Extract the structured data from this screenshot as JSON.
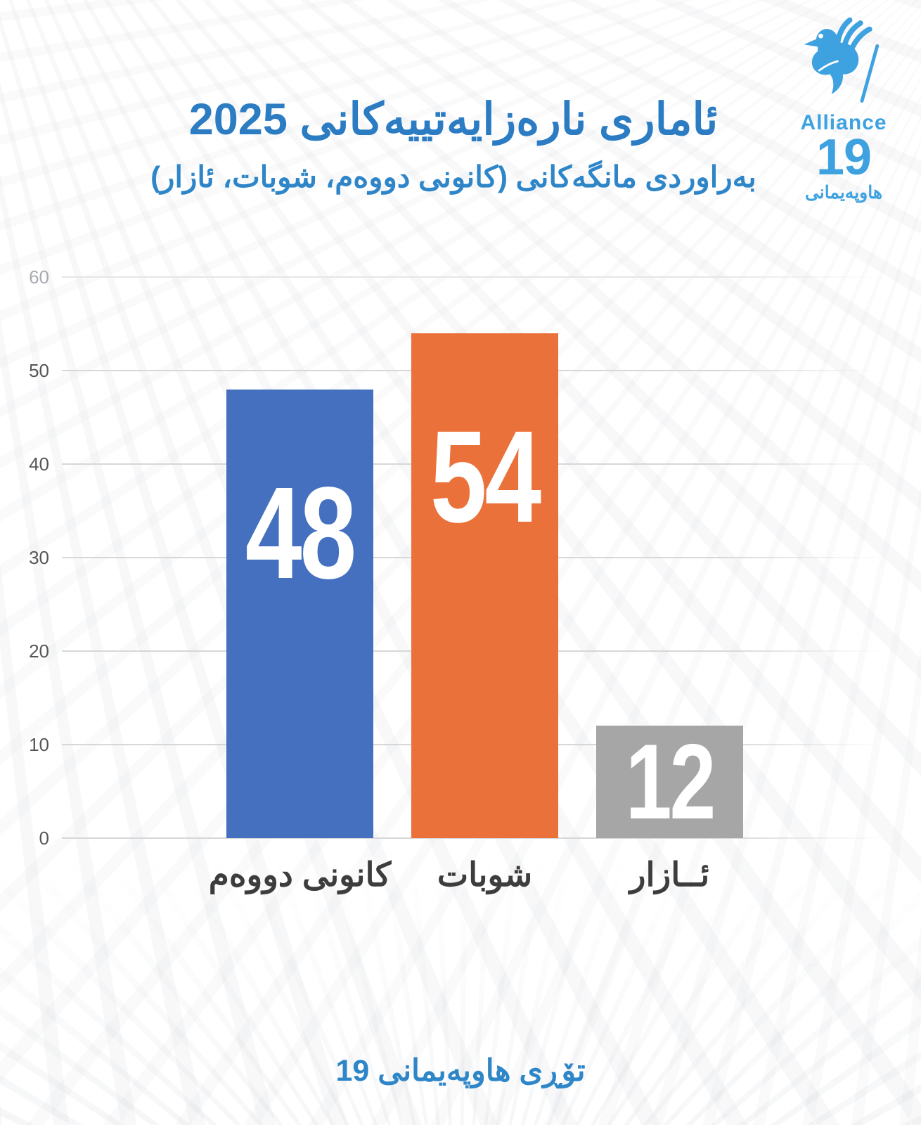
{
  "page": {
    "title": "ئاماری نارەزایەتییەکانی 2025",
    "subtitle": "بەراوردی مانگەکانی (کانونی دووەم، شوبات، ئازار)",
    "footer": "تۆڕی هاوپەیمانی 19"
  },
  "logo": {
    "icon": "dove-icon",
    "wordmark": "Alliance",
    "number": "19",
    "caption": "هاوپەیمانی",
    "color": "#3fa2e0"
  },
  "colors": {
    "title": "#2b7cc2",
    "subtitle": "#2e86c8",
    "footer": "#2e86c8",
    "axis_tick": "#565656",
    "gridline": "#d7d7d7",
    "category_label": "#3d3d3d"
  },
  "chart_data": {
    "type": "bar",
    "title": "ئاماری نارەزایەتییەکانی 2025",
    "subtitle": "بەراوردی مانگەکانی (کانونی دووەم، شوبات، ئازار)",
    "categories": [
      "کانونی دووەم",
      "شوبات",
      "ئــازار"
    ],
    "values": [
      48,
      54,
      12
    ],
    "bar_colors": [
      "#4470bf",
      "#eb713b",
      "#a6a6a6"
    ],
    "value_label_color": "#ffffff",
    "xlabel": "",
    "ylabel": "",
    "ylim": [
      0,
      60
    ],
    "yticks": [
      0,
      10,
      20,
      30,
      40,
      50,
      60
    ],
    "grid": true,
    "legend": false
  }
}
